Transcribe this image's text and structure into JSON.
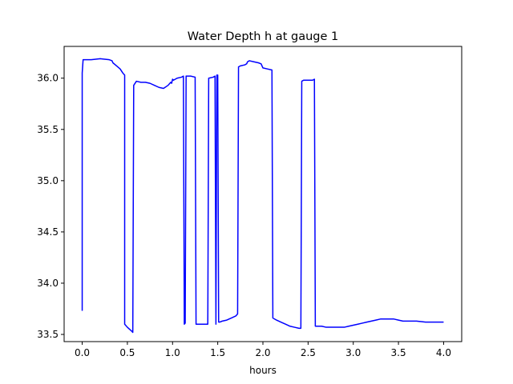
{
  "chart_data": {
    "type": "line",
    "title": "Water Depth h at gauge 1",
    "xlabel": "hours",
    "ylabel": "",
    "xlim": [
      -0.2,
      4.2
    ],
    "ylim": [
      33.43,
      36.31
    ],
    "grid": false,
    "xticks": [
      0.0,
      0.5,
      1.0,
      1.5,
      2.0,
      2.5,
      3.0,
      3.5,
      4.0
    ],
    "xtick_labels": [
      "0.0",
      "0.5",
      "1.0",
      "1.5",
      "2.0",
      "2.5",
      "3.0",
      "3.5",
      "4.0"
    ],
    "yticks": [
      33.5,
      34.0,
      34.5,
      35.0,
      35.5,
      36.0
    ],
    "ytick_labels": [
      "33.5",
      "34.0",
      "34.5",
      "35.0",
      "35.5",
      "36.0"
    ],
    "series": [
      {
        "color": "#0000ff",
        "x": [
          0.0,
          0.0,
          0.01,
          0.1,
          0.2,
          0.3,
          0.33,
          0.34,
          0.38,
          0.42,
          0.45,
          0.47,
          0.47,
          0.5,
          0.55,
          0.56,
          0.57,
          0.6,
          0.65,
          0.7,
          0.75,
          0.8,
          0.85,
          0.9,
          0.95,
          0.98,
          0.99,
          1.0,
          1.01,
          1.05,
          1.1,
          1.12,
          1.13,
          1.14,
          1.15,
          1.17,
          1.2,
          1.25,
          1.26,
          1.3,
          1.35,
          1.38,
          1.39,
          1.4,
          1.45,
          1.47,
          1.48,
          1.49,
          1.5,
          1.51,
          1.52,
          1.55,
          1.6,
          1.65,
          1.7,
          1.72,
          1.73,
          1.75,
          1.8,
          1.82,
          1.83,
          1.85,
          1.9,
          1.95,
          1.98,
          2.0,
          2.05,
          2.1,
          2.11,
          2.15,
          2.2,
          2.25,
          2.3,
          2.35,
          2.4,
          2.42,
          2.43,
          2.45,
          2.5,
          2.55,
          2.57,
          2.58,
          2.6,
          2.65,
          2.7,
          2.75,
          2.8,
          2.85,
          2.9,
          2.95,
          3.0,
          3.05,
          3.1,
          3.15,
          3.2,
          3.25,
          3.3,
          3.35,
          3.4,
          3.45,
          3.5,
          3.55,
          3.6,
          3.7,
          3.8,
          3.9,
          4.0
        ],
        "y": [
          33.73,
          36.05,
          36.18,
          36.18,
          36.19,
          36.18,
          36.17,
          36.15,
          36.12,
          36.09,
          36.05,
          36.03,
          33.6,
          33.57,
          33.53,
          33.52,
          35.93,
          35.97,
          35.96,
          35.96,
          35.95,
          35.93,
          35.91,
          35.9,
          35.93,
          35.96,
          35.95,
          35.99,
          35.98,
          36.0,
          36.01,
          36.02,
          33.6,
          33.61,
          36.02,
          36.02,
          36.02,
          36.01,
          33.6,
          33.6,
          33.6,
          33.6,
          33.6,
          36.0,
          36.01,
          36.02,
          33.6,
          36.03,
          36.03,
          33.62,
          33.62,
          33.63,
          33.64,
          33.66,
          33.68,
          33.7,
          36.11,
          36.12,
          36.13,
          36.14,
          36.16,
          36.17,
          36.16,
          36.15,
          36.14,
          36.1,
          36.09,
          36.08,
          33.66,
          33.64,
          33.62,
          33.6,
          33.58,
          33.57,
          33.56,
          33.56,
          35.97,
          35.98,
          35.98,
          35.98,
          35.99,
          33.58,
          33.58,
          33.58,
          33.57,
          33.57,
          33.57,
          33.57,
          33.57,
          33.58,
          33.59,
          33.6,
          33.61,
          33.62,
          33.63,
          33.64,
          33.65,
          33.65,
          33.65,
          33.65,
          33.64,
          33.63,
          33.63,
          33.63,
          33.62,
          33.62,
          33.62
        ]
      }
    ]
  }
}
